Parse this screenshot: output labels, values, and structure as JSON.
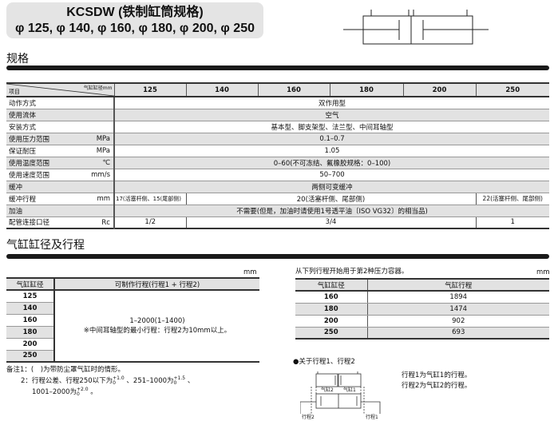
{
  "header": {
    "title": "KCSDW (铁制缸筒规格)",
    "subtitle": "φ 125, φ 140, φ 160, φ 180, φ 200, φ 250"
  },
  "spec": {
    "section_title": "规格",
    "corner_item": "项目",
    "corner_bore": "气缸缸径mm",
    "bores": [
      "125",
      "140",
      "160",
      "180",
      "200",
      "250"
    ],
    "rows": [
      {
        "label": "动作方式",
        "unit": "",
        "value": "双作用型"
      },
      {
        "label": "使用流体",
        "unit": "",
        "value": "空气"
      },
      {
        "label": "安装方式",
        "unit": "",
        "value": "基本型、脚支架型、法兰型、中间耳轴型"
      },
      {
        "label": "使用压力范围",
        "unit": "MPa",
        "value": "0.1–0.7"
      },
      {
        "label": "保证耐压",
        "unit": "MPa",
        "value": "1.05"
      },
      {
        "label": "使用温度范围",
        "unit": "℃",
        "value": "0–60(不可冻结、氟橡胶规格：0–100)"
      },
      {
        "label": "使用速度范围",
        "unit": "mm/s",
        "value": "50–700"
      },
      {
        "label": "缓冲",
        "unit": "",
        "value": "两侧可变缓冲"
      },
      {
        "label": "缓冲行程",
        "unit": "mm",
        "v1": "17(活塞杆侧、15(尾部侧)",
        "v2": "20(活塞杆侧、尾部侧)",
        "v3": "22(活塞杆侧、尾部侧)"
      },
      {
        "label": "加油",
        "unit": "",
        "value": "不需要(但是，加油时请使用1号透平油〔ISO VG32〕的相当品)"
      },
      {
        "label": "配管连接口径",
        "unit": "Rc",
        "v1": "1/2",
        "v2": "3/4",
        "v3": "1"
      }
    ]
  },
  "stroke": {
    "section_title": "气缸缸径及行程",
    "unit": "mm",
    "col_bore": "气缸缸径",
    "col_stroke": "可制作行程(行程1 + 行程2)",
    "bores": [
      "125",
      "140",
      "160",
      "180",
      "200",
      "250"
    ],
    "range": "1–2000(1–1400)",
    "range_note": "※中间耳轴型的最小行程：行程2为10mm以上。",
    "note1": "备注1：(　)为带防尘罩气缸时的情形。",
    "note2_a": "2：行程公差、行程250以下为",
    "tol1": "+1.0",
    "tol1b": "0",
    "note2_b": "、251–1000为",
    "tol2": "+1.5",
    "tol2b": "0",
    "note2_c": "、",
    "note3_a": "1001–2000为",
    "tol3": "+2.0",
    "tol3b": "0",
    "note3_b": "。"
  },
  "pressure": {
    "caption": "从下列行程开始用于第2种压力容器。",
    "unit": "mm",
    "col_bore": "气缸缸径",
    "col_stroke": "气缸行程",
    "rows": [
      {
        "bore": "160",
        "stroke": "1894"
      },
      {
        "bore": "180",
        "stroke": "1474"
      },
      {
        "bore": "200",
        "stroke": "902"
      },
      {
        "bore": "250",
        "stroke": "693"
      }
    ]
  },
  "about": {
    "title": "●关于行程1、行程2",
    "line1": "行程1为气缸1的行程。",
    "line2": "行程2为气缸2的行程。",
    "lbl_cyl2": "气缸2",
    "lbl_cyl1": "气缸1",
    "lbl_st2": "行程2",
    "lbl_st1": "行程1"
  }
}
